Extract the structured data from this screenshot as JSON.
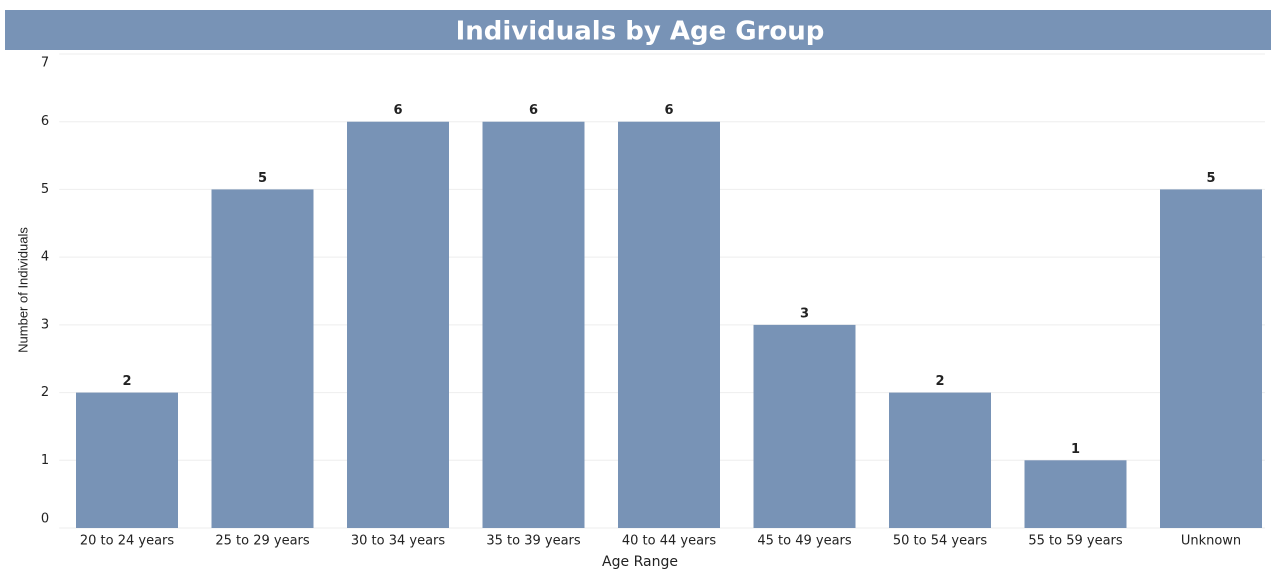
{
  "chart_data": {
    "type": "bar",
    "title": "Individuals by Age Group",
    "x_label": "Age Range",
    "y_label": "Number of Individuals",
    "categories": [
      "20 to 24 years",
      "25 to 29 years",
      "30 to 34 years",
      "35 to 39 years",
      "40 to 44 years",
      "45 to 49 years",
      "50 to 54 years",
      "55 to 59 years",
      "Unknown"
    ],
    "values": [
      2,
      5,
      6,
      6,
      6,
      3,
      2,
      1,
      5
    ],
    "color": "#7893b6",
    "ylim": [
      0,
      7
    ],
    "yticks": [
      0,
      1,
      2,
      3,
      4,
      5,
      6,
      7
    ],
    "grid": true
  }
}
